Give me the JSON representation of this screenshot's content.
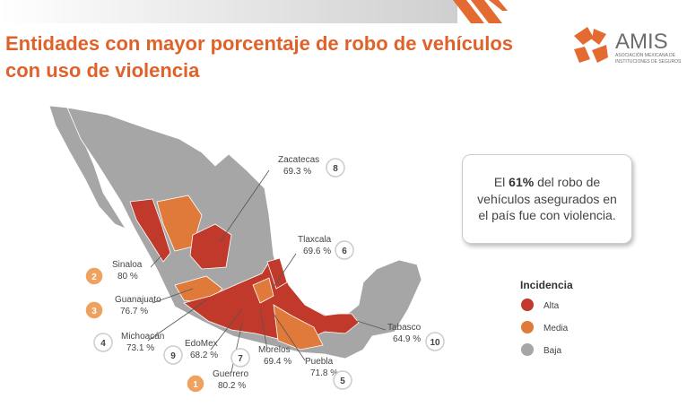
{
  "header": {
    "title_lines": [
      "Entidades con mayor porcentaje de robo de vehículos",
      "con uso de violencia"
    ],
    "logo": {
      "name": "AMIS",
      "subtitle_lines": [
        "ASOCIACIÓN MEXICANA DE",
        "INSTITUCIONES DE SEGUROS"
      ]
    }
  },
  "callout": {
    "before": "El ",
    "bold": "61%",
    "after": " del robo de vehículos asegurados en el país fue con violencia."
  },
  "legend": {
    "title": "Incidencia",
    "items": [
      {
        "label": "Alta",
        "color": "#c0392b"
      },
      {
        "label": "Media",
        "color": "#e07a3a"
      },
      {
        "label": "Baja",
        "color": "#a6a6a6"
      }
    ]
  },
  "states": [
    {
      "name": "Sinaloa",
      "value": "80 %",
      "rank": "2"
    },
    {
      "name": "Guanajuato",
      "value": "76.7 %",
      "rank": "3"
    },
    {
      "name": "Michoacán",
      "value": "73.1 %",
      "rank": "4"
    },
    {
      "name": "EdoMex",
      "value": "68.2 %",
      "rank": "9"
    },
    {
      "name": "Guerrero",
      "value": "80.2 %",
      "rank": "1"
    },
    {
      "name": "Morelos",
      "value": "69.4 %",
      "rank": "7"
    },
    {
      "name": "Puebla",
      "value": "71.8 %",
      "rank": "5"
    },
    {
      "name": "Tabasco",
      "value": "64.9 %",
      "rank": "10"
    },
    {
      "name": "Tlaxcala",
      "value": "69.6 %",
      "rank": "6"
    },
    {
      "name": "Zacatecas",
      "value": "69.3 %",
      "rank": "8"
    }
  ]
}
